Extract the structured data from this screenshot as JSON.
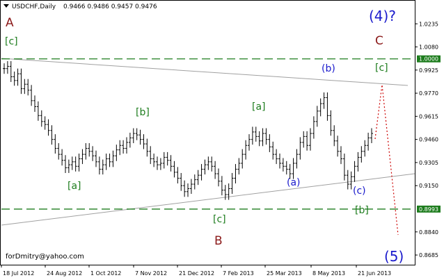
{
  "header": {
    "symbol": "USDCHF,Daily",
    "ohlc": "0.9466 0.9486 0.9457 0.9476"
  },
  "watermark": "forDmitry@yahoo.com",
  "colors": {
    "bars": "#000000",
    "wave_major": "#8b1a1a",
    "wave_minor": "#1e7d1e",
    "wave_sub": "#1a1acc",
    "level_line": "#1e7d1e",
    "trend_line": "#a0a0a0",
    "projection": "#cc0000",
    "level_badge": "#1e7d1e"
  },
  "chart_data": {
    "type": "line",
    "title": "USDCHF,Daily",
    "x_ticks": [
      "18 Jul 2012",
      "24 Aug 2012",
      "1 Oct 2012",
      "7 Nov 2012",
      "21 Dec 2012",
      "7 Feb 2013",
      "25 Mar 2013",
      "8 May 2013",
      "21 Jun 2013"
    ],
    "y_ticks": [
      "1.0235",
      "1.0080",
      "0.9925",
      "0.9770",
      "0.9615",
      "0.9460",
      "0.9305",
      "0.9150",
      "0.8840",
      "0.8685"
    ],
    "ylim": [
      0.862,
      1.039
    ],
    "series": [
      {
        "values": [
          0.9935,
          0.995,
          0.988,
          0.9855,
          0.99,
          0.98,
          0.983,
          0.979,
          0.972,
          0.968,
          0.962,
          0.958,
          0.956,
          0.952,
          0.946,
          0.94,
          0.936,
          0.932,
          0.927,
          0.929,
          0.931,
          0.928,
          0.933,
          0.936,
          0.94,
          0.938,
          0.935,
          0.931,
          0.926,
          0.929,
          0.933,
          0.931,
          0.935,
          0.939,
          0.942,
          0.94,
          0.944,
          0.947,
          0.95,
          0.949,
          0.946,
          0.943,
          0.938,
          0.933,
          0.931,
          0.929,
          0.93,
          0.934,
          0.932,
          0.928,
          0.924,
          0.92,
          0.915,
          0.911,
          0.913,
          0.916,
          0.919,
          0.922,
          0.926,
          0.929,
          0.931,
          0.928,
          0.923,
          0.918,
          0.912,
          0.909,
          0.913,
          0.92,
          0.926,
          0.93,
          0.936,
          0.942,
          0.946,
          0.951,
          0.948,
          0.945,
          0.95,
          0.946,
          0.941,
          0.936,
          0.933,
          0.93,
          0.928,
          0.926,
          0.923,
          0.93,
          0.936,
          0.944,
          0.948,
          0.942,
          0.95,
          0.958,
          0.965,
          0.97,
          0.974,
          0.962,
          0.952,
          0.945,
          0.938,
          0.933,
          0.922,
          0.916,
          0.921,
          0.928,
          0.934,
          0.938,
          0.942,
          0.947,
          0.95
        ]
      }
    ],
    "levels": [
      {
        "label": "1.0000",
        "value": 1.0
      },
      {
        "label": "0.8993",
        "value": 0.8993
      }
    ],
    "annotations": [
      {
        "text": "A",
        "group": "major"
      },
      {
        "text": "[c]",
        "group": "minor"
      },
      {
        "text": "[a]",
        "group": "minor"
      },
      {
        "text": "[b]",
        "group": "minor"
      },
      {
        "text": "[c]",
        "group": "minor"
      },
      {
        "text": "B",
        "group": "major"
      },
      {
        "text": "[a]",
        "group": "minor"
      },
      {
        "text": "(a)",
        "group": "sub"
      },
      {
        "text": "(b)",
        "group": "sub"
      },
      {
        "text": "(c)",
        "group": "sub"
      },
      {
        "text": "[b]",
        "group": "minor"
      },
      {
        "text": "[c]",
        "group": "minor"
      },
      {
        "text": "C",
        "group": "major"
      },
      {
        "text": "(4)?",
        "group": "sub"
      },
      {
        "text": "(5)",
        "group": "sub"
      }
    ]
  }
}
